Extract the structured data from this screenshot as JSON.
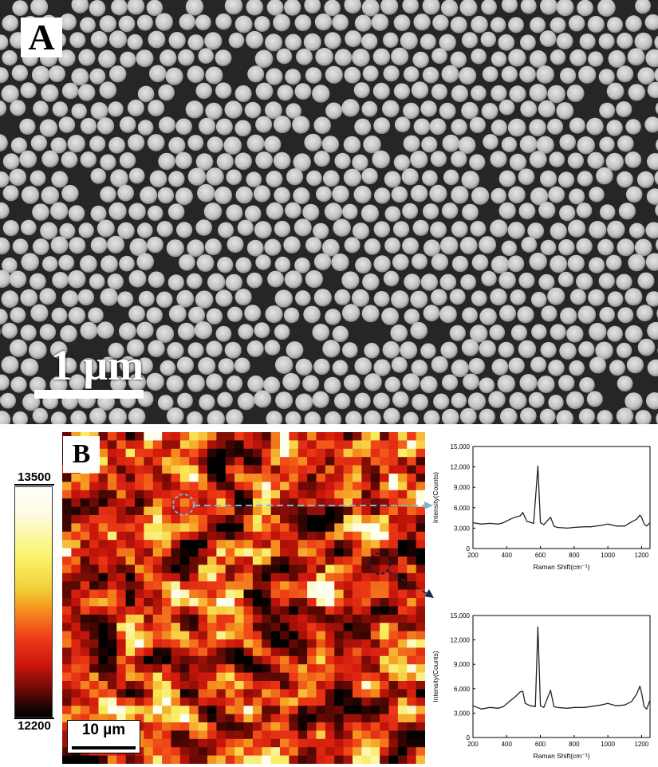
{
  "panel_a": {
    "label": "A",
    "scale_bar_label": "1 µm"
  },
  "panel_b": {
    "label": "B",
    "colorbar": {
      "max": "13500",
      "min": "12200",
      "colors": [
        "#ffffff",
        "#f9f46a",
        "#f49a1f",
        "#ef3a17",
        "#c8150c",
        "#000000"
      ]
    },
    "scale_bar_label": "10 µm",
    "heatmap": {
      "rows": 40,
      "cols": 40,
      "seed": 7
    }
  },
  "chart_data": [
    {
      "type": "line",
      "xlabel": "Raman Shift(cm⁻¹)",
      "ylabel": "Intensity(Counts)",
      "xlim": [
        200,
        1250
      ],
      "ylim": [
        0,
        15000
      ],
      "xticks": [
        "200",
        "400",
        "600",
        "800",
        "1000",
        "1200"
      ],
      "yticks": [
        "0",
        "3,000",
        "6,000",
        "9,000",
        "12,000",
        "15,000"
      ],
      "x": [
        200,
        250,
        300,
        350,
        380,
        420,
        450,
        480,
        495,
        520,
        560,
        585,
        600,
        620,
        660,
        680,
        700,
        760,
        800,
        860,
        900,
        960,
        1000,
        1050,
        1100,
        1140,
        1170,
        1190,
        1200,
        1215,
        1230,
        1250
      ],
      "y": [
        3800,
        3600,
        3700,
        3600,
        3800,
        4300,
        4600,
        4800,
        5300,
        4000,
        3700,
        12100,
        3800,
        3500,
        4600,
        3300,
        3100,
        3000,
        3100,
        3200,
        3200,
        3400,
        3600,
        3300,
        3300,
        3900,
        4300,
        4900,
        4600,
        3600,
        3300,
        3800
      ]
    },
    {
      "type": "line",
      "xlabel": "Raman Shift(cm⁻¹)",
      "ylabel": "Intensity(Counts)",
      "xlim": [
        200,
        1250
      ],
      "ylim": [
        0,
        15000
      ],
      "xticks": [
        "200",
        "400",
        "600",
        "800",
        "1000",
        "1200"
      ],
      "yticks": [
        "0",
        "3,000",
        "6,000",
        "9,000",
        "12,000",
        "15,000"
      ],
      "x": [
        200,
        250,
        300,
        350,
        380,
        420,
        450,
        480,
        495,
        510,
        540,
        570,
        585,
        600,
        620,
        660,
        680,
        700,
        760,
        800,
        860,
        900,
        960,
        1000,
        1050,
        1100,
        1140,
        1170,
        1190,
        1200,
        1215,
        1230,
        1250
      ],
      "y": [
        3900,
        3500,
        3700,
        3600,
        3800,
        4500,
        5000,
        5600,
        5700,
        4200,
        3900,
        3800,
        13600,
        3900,
        3700,
        5800,
        3800,
        3700,
        3600,
        3700,
        3700,
        3800,
        4000,
        4200,
        3900,
        4000,
        4400,
        5300,
        6300,
        5500,
        3800,
        3500,
        4600
      ]
    }
  ]
}
